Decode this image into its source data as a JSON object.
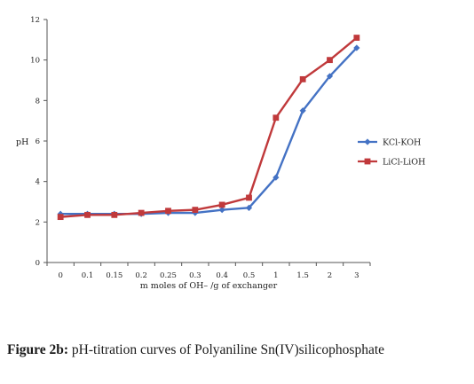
{
  "chart_data": {
    "type": "line",
    "categories": [
      "0",
      "0.1",
      "0.15",
      "0.2",
      "0.25",
      "0.3",
      "0.4",
      "0.5",
      "1",
      "1.5",
      "2",
      "3"
    ],
    "series": [
      {
        "name": "KCl-KOH",
        "color": "#4472c4",
        "marker": "diamond",
        "values": [
          2.4,
          2.4,
          2.4,
          2.4,
          2.45,
          2.45,
          2.6,
          2.7,
          4.2,
          7.5,
          9.2,
          10.6
        ]
      },
      {
        "name": "LiCl-LiOH",
        "color": "#c0393b",
        "marker": "square",
        "values": [
          2.25,
          2.35,
          2.35,
          2.45,
          2.55,
          2.6,
          2.85,
          3.2,
          7.15,
          9.05,
          10.0,
          11.1
        ]
      }
    ],
    "title": "",
    "xlabel": "m moles of OH– /g of exchanger",
    "ylabel": "pH",
    "ylim": [
      0,
      12
    ],
    "yticks": [
      "0",
      "2",
      "4",
      "6",
      "8",
      "10",
      "12"
    ],
    "grid": false,
    "legend": "right"
  },
  "caption": {
    "label": "Figure 2b:",
    "text": " pH-titration curves of Polyaniline Sn(IV)silicophosphate"
  }
}
